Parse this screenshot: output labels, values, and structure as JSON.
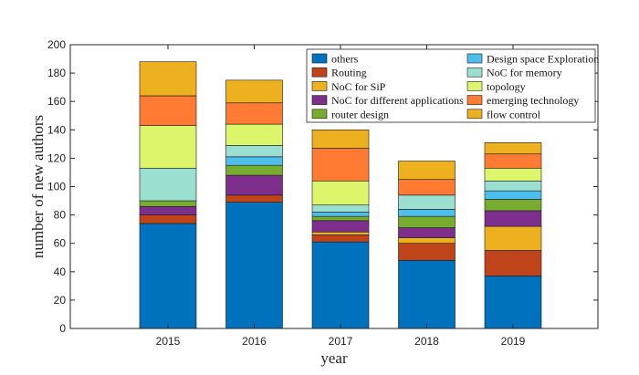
{
  "chart_data": {
    "type": "bar",
    "stacked": true,
    "categories": [
      "2015",
      "2016",
      "2017",
      "2018",
      "2019"
    ],
    "xlabel": "year",
    "ylabel": "number of new authors",
    "ylim": [
      0,
      200
    ],
    "yticks": [
      0,
      20,
      40,
      60,
      80,
      100,
      120,
      140,
      160,
      180,
      200
    ],
    "grid": false,
    "legend": "top-right",
    "series": [
      {
        "name": "others",
        "color": "#0072BD",
        "values": [
          74,
          89,
          61,
          48,
          37
        ]
      },
      {
        "name": "Routing",
        "color": "#C0441A",
        "values": [
          6,
          5,
          5,
          12,
          18
        ]
      },
      {
        "name": "NoC for SiP",
        "color": "#EDB120",
        "values": [
          0,
          0,
          2,
          4,
          17
        ]
      },
      {
        "name": "NoC for different applications",
        "color": "#7E2F8E",
        "values": [
          6,
          14,
          8,
          7,
          11
        ]
      },
      {
        "name": "router design",
        "color": "#77AC30",
        "values": [
          4,
          7,
          3,
          8,
          8
        ]
      },
      {
        "name": "Design space Exploration",
        "color": "#4DBEEE",
        "values": [
          0,
          6,
          3,
          5,
          6
        ]
      },
      {
        "name": "NoC for memory",
        "color": "#9ADFCF",
        "values": [
          23,
          8,
          5,
          10,
          7
        ]
      },
      {
        "name": "topology",
        "color": "#DDF56B",
        "values": [
          30,
          15,
          17,
          0,
          9
        ]
      },
      {
        "name": "emerging technology",
        "color": "#FF7A33",
        "values": [
          21,
          15,
          23,
          11,
          10
        ]
      },
      {
        "name": "flow control",
        "color": "#EDB120",
        "values": [
          24,
          16,
          13,
          13,
          8
        ]
      }
    ]
  }
}
